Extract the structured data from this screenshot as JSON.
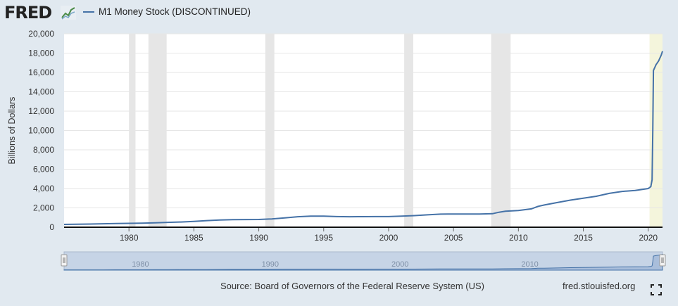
{
  "header": {
    "logo_text": "FRED",
    "logo_icon": "fred-graph-icon"
  },
  "legend": {
    "series_label": "M1 Money Stock (DISCONTINUED)"
  },
  "footer": {
    "source": "Source: Board of Governors of the Federal Reserve System (US)",
    "site": "fred.stlouisfed.org",
    "fullscreen_icon": "fullscreen-icon"
  },
  "colors": {
    "line": "#4572a7",
    "recession": "#e6e6e6",
    "highlight": "#f4f5dc",
    "background": "#e1e9f0"
  },
  "chart_data": {
    "type": "line",
    "title": "",
    "ylabel": "Billions of Dollars",
    "xlabel": "",
    "ylim": [
      0,
      20000
    ],
    "xlim": [
      1975.0,
      2021.1
    ],
    "yticks": [
      0,
      2000,
      4000,
      6000,
      8000,
      10000,
      12000,
      14000,
      16000,
      18000,
      20000
    ],
    "ytick_labels": [
      "0",
      "2,000",
      "4,000",
      "6,000",
      "8,000",
      "10,000",
      "12,000",
      "14,000",
      "16,000",
      "18,000",
      "20,000"
    ],
    "xticks": [
      1980,
      1985,
      1990,
      1995,
      2000,
      2005,
      2010,
      2015,
      2020
    ],
    "xtick_labels": [
      "1980",
      "1985",
      "1990",
      "1995",
      "2000",
      "2005",
      "2010",
      "2015",
      "2020"
    ],
    "grid": true,
    "recessions": [
      [
        1980.0,
        1980.5
      ],
      [
        1981.5,
        1982.9
      ],
      [
        1990.5,
        1991.2
      ],
      [
        2001.2,
        2001.9
      ],
      [
        2007.9,
        2009.4
      ]
    ],
    "highlight": [
      2020.1,
      2021.1
    ],
    "series": [
      {
        "name": "M1 Money Stock (DISCONTINUED)",
        "x": [
          1975.0,
          1976.0,
          1977.0,
          1978.0,
          1979.0,
          1980.0,
          1981.0,
          1982.0,
          1983.0,
          1984.0,
          1985.0,
          1986.0,
          1987.0,
          1988.0,
          1989.0,
          1990.0,
          1991.0,
          1992.0,
          1993.0,
          1994.0,
          1995.0,
          1996.0,
          1997.0,
          1998.0,
          1999.0,
          2000.0,
          2001.0,
          2002.0,
          2003.0,
          2004.0,
          2005.0,
          2006.0,
          2007.0,
          2008.0,
          2008.5,
          2009.0,
          2010.0,
          2011.0,
          2011.5,
          2012.0,
          2013.0,
          2014.0,
          2015.0,
          2016.0,
          2017.0,
          2018.0,
          2019.0,
          2020.0,
          2020.2,
          2020.3,
          2020.35,
          2020.4,
          2020.6,
          2020.8,
          2021.0,
          2021.1
        ],
        "values": [
          290,
          310,
          330,
          360,
          380,
          400,
          420,
          450,
          500,
          540,
          600,
          680,
          750,
          780,
          790,
          800,
          860,
          970,
          1080,
          1150,
          1140,
          1100,
          1080,
          1090,
          1100,
          1100,
          1150,
          1200,
          1280,
          1350,
          1370,
          1370,
          1370,
          1400,
          1550,
          1650,
          1730,
          1900,
          2150,
          2300,
          2550,
          2800,
          3000,
          3200,
          3500,
          3700,
          3800,
          4000,
          4200,
          4900,
          10000,
          16200,
          16800,
          17200,
          17800,
          18200
        ]
      }
    ]
  },
  "navigator": {
    "labels": [
      "1980",
      "1990",
      "2000",
      "2010"
    ],
    "label_years": [
      1980,
      1990,
      2000,
      2010
    ],
    "left_handle_icon": "navigator-left-handle-icon",
    "right_handle_icon": "navigator-right-handle-icon"
  }
}
